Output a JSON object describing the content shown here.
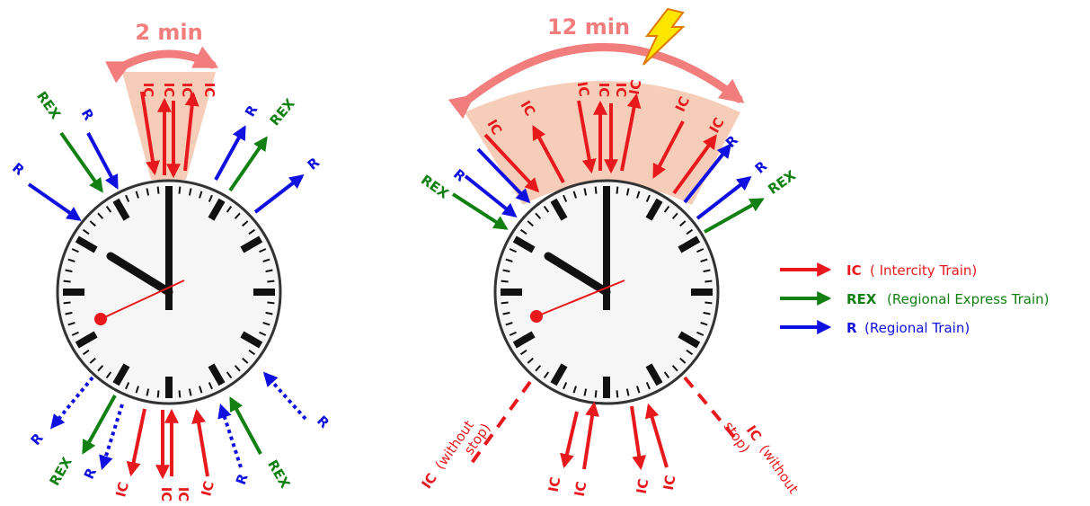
{
  "colors": {
    "ic": "#e8191c",
    "rex": "#128012",
    "r": "#1010e0",
    "fan": "#f6cdb8",
    "span_arrow": "#f27d7d",
    "bolt": "#ffe600",
    "bolt_edge": "#e07a00",
    "clock_face": "#ffffff",
    "clock_rim": "#333333",
    "second_hand": "#e8191c"
  },
  "left_clock": {
    "span_label": "2 min",
    "top_ic_labels": [
      "IC",
      "IC",
      "IC",
      "IC"
    ],
    "top_left_labels": [
      "REX",
      "R",
      "R"
    ],
    "top_right_labels": [
      "R",
      "REX",
      "R"
    ],
    "bottom_labels": {
      "r_left_outer": "R",
      "rex_left": "REX",
      "r_left_inner": "R",
      "ic_1": "IC",
      "ic_2": "IC",
      "ic_3": "IC",
      "ic_4": "IC",
      "r_right_inner": "R",
      "rex_right": "REX",
      "r_right_outer": "R"
    }
  },
  "right_clock": {
    "span_label": "12 min",
    "top_ic_labels": [
      "IC",
      "IC",
      "IC",
      "IC",
      "IC",
      "IC",
      "IC",
      "IC"
    ],
    "top_left_labels": [
      "REX",
      "R"
    ],
    "top_right_labels": [
      "R",
      "R",
      "REX"
    ],
    "bottom_ic_labels": [
      "IC",
      "IC",
      "IC",
      "IC"
    ],
    "without_stop": {
      "code": "IC",
      "paren": "(without",
      "tail": "stop)"
    }
  },
  "legend": {
    "items": [
      {
        "code": "IC",
        "desc": "( Intercity Train)",
        "color_key": "ic"
      },
      {
        "code": "REX",
        "desc": "(Regional Express Train)",
        "color_key": "rex"
      },
      {
        "code": "R",
        "desc": "(Regional Train)",
        "color_key": "r"
      }
    ]
  }
}
